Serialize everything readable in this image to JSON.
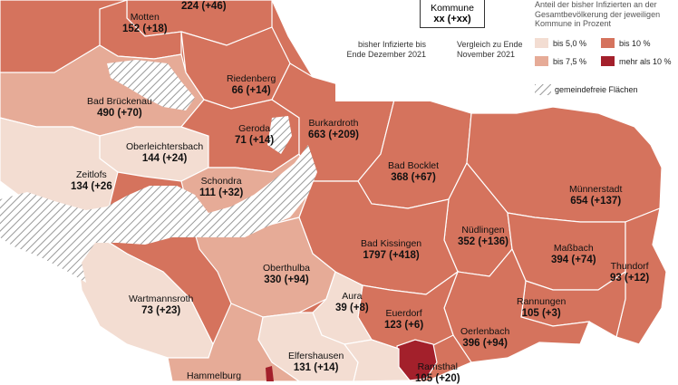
{
  "colors": {
    "bis5": "#f3ddd2",
    "bis75": "#e6ab97",
    "bis10": "#d5735d",
    "mehr10": "#a3202b",
    "border": "#ffffff",
    "hatch": "#9a9a9a"
  },
  "legend": {
    "title": "Anteil der bisher Infizierten an der Gesamtbevölkerung der jeweiligen Kommune in Prozent",
    "key_box": {
      "name": "Kommune",
      "value": "xx (+xx)"
    },
    "key_left": "bisher Infizierte bis Ende Dezember 2021",
    "key_right": "Vergleich zu Ende November 2021",
    "classes": [
      {
        "label": "bis 5,0 %",
        "color": "#f3ddd2"
      },
      {
        "label": "bis 7,5 %",
        "color": "#e6ab97"
      },
      {
        "label": "bis 10 %",
        "color": "#d5735d"
      },
      {
        "label": "mehr als 10 %",
        "color": "#a3202b"
      }
    ],
    "hatch_label": "gemeindefreie Flächen"
  },
  "municipalities": [
    {
      "name": "",
      "value": "224 (+46)"
    },
    {
      "name": "Motten",
      "value": "152 (+18)"
    },
    {
      "name": "Riedenberg",
      "value": "66 (+14)"
    },
    {
      "name": "Bad Brückenau",
      "value": "490 (+70)"
    },
    {
      "name": "Burkardroth",
      "value": "663 (+209)"
    },
    {
      "name": "Geroda",
      "value": "71 (+14)"
    },
    {
      "name": "Oberleichtersbach",
      "value": "144 (+24)"
    },
    {
      "name": "Zeitlofs",
      "value": "134 (+26"
    },
    {
      "name": "Schondra",
      "value": "111 (+32)"
    },
    {
      "name": "Bad Bocklet",
      "value": "368 (+67)"
    },
    {
      "name": "Münnerstadt",
      "value": "654 (+137)"
    },
    {
      "name": "Nüdlingen",
      "value": "352 (+136)"
    },
    {
      "name": "Bad Kissingen",
      "value": "1797 (+418)"
    },
    {
      "name": "Maßbach",
      "value": "394 (+74)"
    },
    {
      "name": "Oberthulba",
      "value": "330 (+94)"
    },
    {
      "name": "Thundorf",
      "value": "93 (+12)"
    },
    {
      "name": "Wartmannsroth",
      "value": "73 (+23)"
    },
    {
      "name": "Aura",
      "value": "39 (+8)"
    },
    {
      "name": "Euerdorf",
      "value": "123 (+6)"
    },
    {
      "name": "Rannungen",
      "value": "105 (+3)"
    },
    {
      "name": "Oerlenbach",
      "value": "396 (+94)"
    },
    {
      "name": "Elfershausen",
      "value": "131 (+14)"
    },
    {
      "name": "Hammelburg",
      "value": ""
    },
    {
      "name": "Ramsthal",
      "value": "105 (+20)"
    }
  ]
}
